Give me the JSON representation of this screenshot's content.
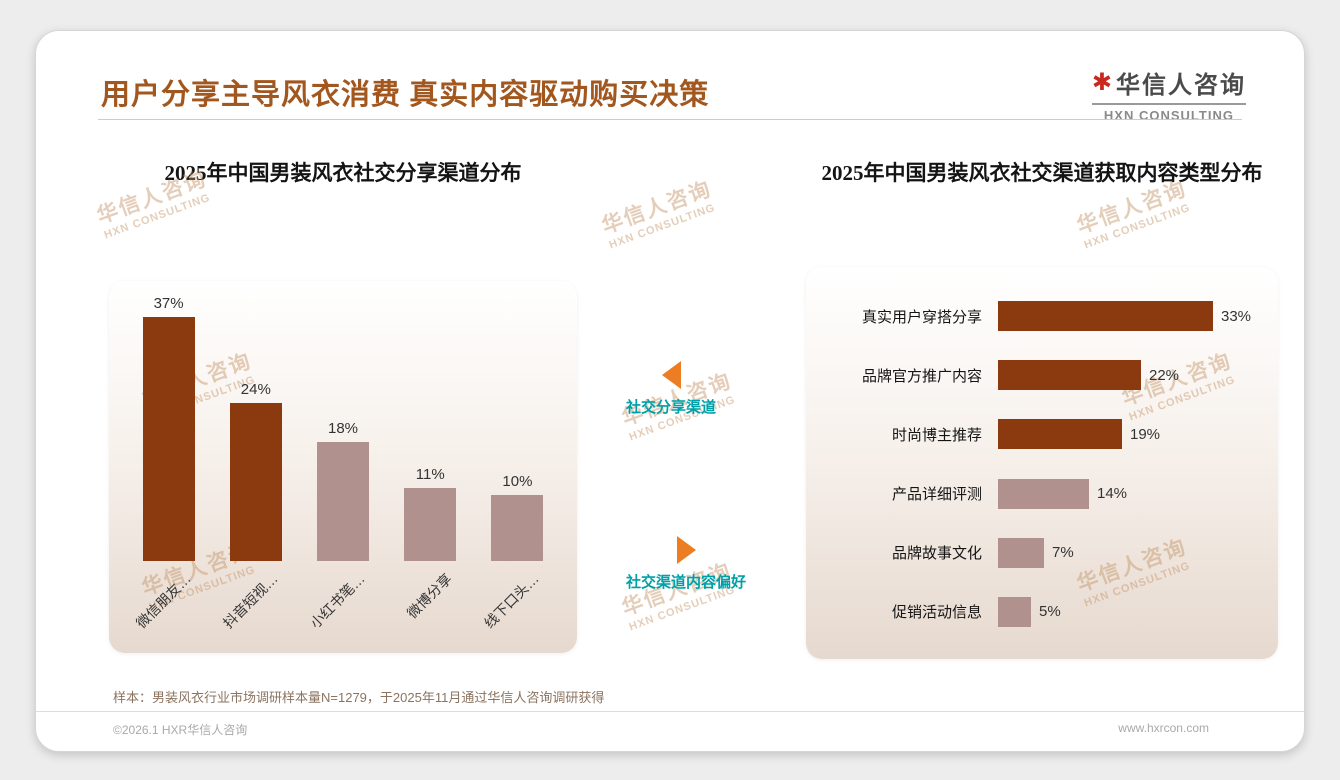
{
  "page": {
    "title": "用户分享主导风衣消费 真实内容驱动购买决策",
    "footnote": "样本：男装风衣行业市场调研样本量N=1279，于2025年11月通过华信人咨询调研获得",
    "footer_left": "©2026.1 HXR华信人咨询",
    "footer_right": "www.hxrcon.com"
  },
  "logo": {
    "star": "✱",
    "name": "华信人咨询",
    "subtitle": "HXN CONSULTING"
  },
  "watermark": {
    "line1": "华信人咨询",
    "line2": "HXN CONSULTING"
  },
  "annotations": {
    "top_label": "社交分享渠道",
    "bottom_label": "社交渠道内容偏好"
  },
  "colors": {
    "dark_bar": "#8b3a10",
    "light_bar": "#b0918d",
    "title_brown": "#a2571e",
    "teal": "#00a0a8",
    "orange": "#ed7d23"
  },
  "chart_data": [
    {
      "type": "bar",
      "orientation": "vertical",
      "title": "2025年中国男装风衣社交分享渠道分布",
      "categories": [
        "微信朋友…",
        "抖音短视…",
        "小红书笔…",
        "微博分享",
        "线下口头…"
      ],
      "values": [
        37,
        24,
        18,
        11,
        10
      ],
      "value_suffix": "%",
      "bar_colors": [
        "#8b3a10",
        "#8b3a10",
        "#b0918d",
        "#b0918d",
        "#b0918d"
      ],
      "ylim": [
        0,
        40
      ],
      "grid": false,
      "legend": "none"
    },
    {
      "type": "bar",
      "orientation": "horizontal",
      "title": "2025年中国男装风衣社交渠道获取内容类型分布",
      "categories": [
        "真实用户穿搭分享",
        "品牌官方推广内容",
        "时尚博主推荐",
        "产品详细评测",
        "品牌故事文化",
        "促销活动信息"
      ],
      "values": [
        33,
        22,
        19,
        14,
        7,
        5
      ],
      "value_suffix": "%",
      "bar_colors": [
        "#8b3a10",
        "#8b3a10",
        "#8b3a10",
        "#b0918d",
        "#b0918d",
        "#b0918d"
      ],
      "xlim": [
        0,
        36
      ],
      "grid": false,
      "legend": "none"
    }
  ]
}
